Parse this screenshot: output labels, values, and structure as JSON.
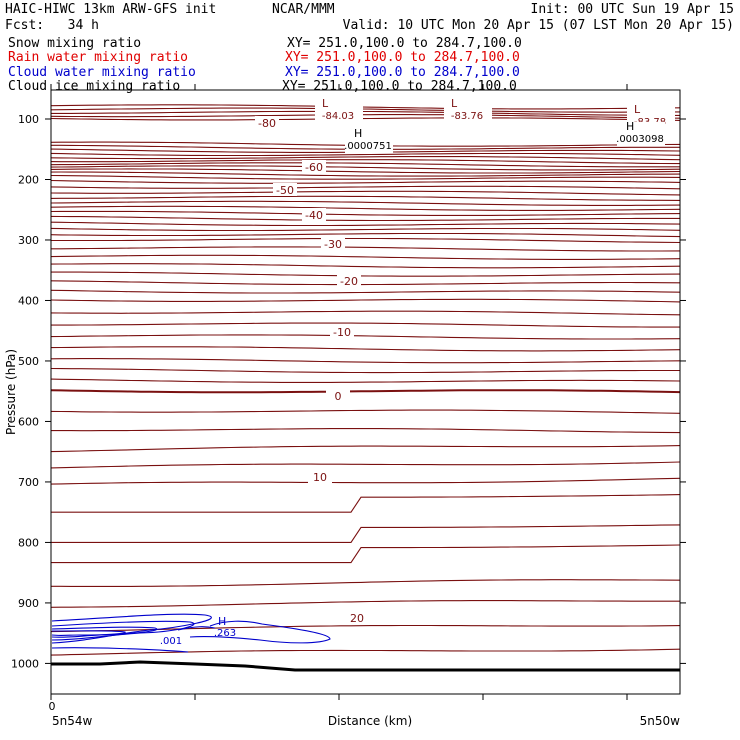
{
  "header": {
    "model": "HAIC-HIWC 13km ARW-GFS init",
    "org": "NCAR/MMM",
    "init": "Init: 00 UTC Sun 19 Apr 15",
    "fcst": "Fcst:   34 h",
    "valid": "Valid: 10 UTC Mon 20 Apr 15 (07 LST Mon 20 Apr 15)"
  },
  "fields": [
    {
      "name": "Snow mixing ratio",
      "xy": "XY= 251.0,100.0 to 284.7,100.0",
      "color": "#000000"
    },
    {
      "name": "Rain water mixing ratio",
      "xy": "XY= 251.0,100.0 to 284.7,100.0",
      "color": "#e00000"
    },
    {
      "name": "Cloud water mixing ratio",
      "xy": "XY= 251.0,100.0 to 284.7,100.0",
      "color": "#0000cc"
    },
    {
      "name": "Cloud ice mixing ratio",
      "xy": "XY= 251.0,100.0 to 284.7,100.0",
      "color": "#000000"
    }
  ],
  "chart_data": {
    "type": "line",
    "ylabel": "Pressure (hPa)",
    "xlabel": "Distance (km)",
    "y_ticks": [
      100,
      200,
      300,
      400,
      500,
      600,
      700,
      800,
      900,
      1000
    ],
    "x_tick_label": "0",
    "x_left_label": "5n54w",
    "x_right_label": "5n50w",
    "ylim": [
      1050,
      50
    ],
    "temperature_color": "#7a1010",
    "isotherm_levels": [
      -84,
      -82,
      -80,
      -78,
      -76,
      -74,
      -72,
      -70,
      -68,
      -66,
      -64,
      -62,
      -60,
      -58,
      -56,
      -54,
      -52,
      -50,
      -48,
      -46,
      -44,
      -42,
      -40,
      -38,
      -36,
      -34,
      -32,
      -30,
      -28,
      -26,
      -24,
      -22,
      -20,
      -18,
      -16,
      -14,
      -12,
      -10,
      -8,
      -6,
      -4,
      -2,
      0,
      2,
      4,
      6,
      8,
      10,
      12,
      14,
      16,
      18,
      20,
      22,
      24
    ],
    "isotherm_labels": [
      "-80",
      "-60",
      "-50",
      "-40",
      "-30",
      "-20",
      "-10",
      "0",
      "10",
      "20"
    ],
    "extrema": [
      {
        "type": "L",
        "value": "-84.03",
        "color": "#7a1010"
      },
      {
        "type": "L",
        "value": "-83.76",
        "color": "#7a1010"
      },
      {
        "type": "L",
        "value": "-83.78",
        "color": "#7a1010"
      },
      {
        "type": "H",
        "value": ".0000751",
        "color": "#000000"
      },
      {
        "type": "H",
        "value": ".0003098",
        "color": "#000000"
      }
    ],
    "cloud_water": {
      "max_label": "H",
      "max_value": ".263",
      "contour_label": ".001",
      "color": "#0000cc"
    }
  }
}
